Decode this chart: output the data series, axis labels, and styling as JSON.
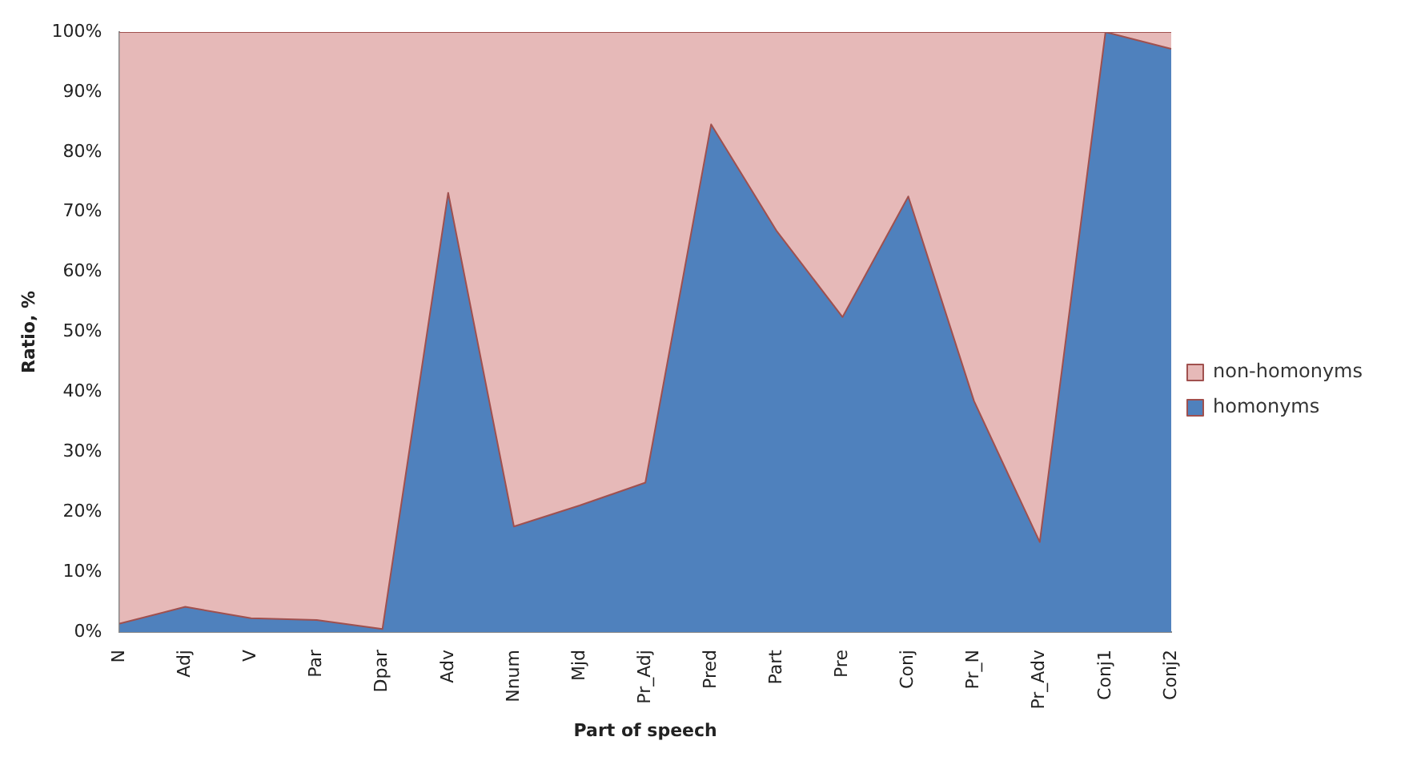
{
  "chart_data": {
    "type": "area",
    "stacked": true,
    "xlabel": "Part of speech",
    "ylabel": "Ratio, %",
    "categories": [
      "N",
      "Adj",
      "V",
      "Par",
      "Dpar",
      "Adv",
      "Nnum",
      "Mjd",
      "Pr_Adj",
      "Pred",
      "Part",
      "Pre",
      "Conj",
      "Pr_N",
      "Pr_Adv",
      "Conj1",
      "Conj2"
    ],
    "series": [
      {
        "name": "homonyms",
        "color": "#4f81bd",
        "values": [
          1.4,
          4.2,
          2.3,
          2.0,
          0.5,
          73.2,
          17.6,
          21.1,
          24.9,
          84.6,
          66.8,
          52.5,
          72.6,
          38.5,
          15.0,
          100,
          97.2
        ]
      },
      {
        "name": "non-homonyms",
        "color": "#e6b9b8",
        "values": [
          98.6,
          95.8,
          97.7,
          98.0,
          99.5,
          26.8,
          82.4,
          78.9,
          75.1,
          15.4,
          33.2,
          47.5,
          27.4,
          61.5,
          85.0,
          0,
          2.8
        ]
      }
    ],
    "ylim": [
      0,
      100
    ],
    "yticks": [
      {
        "value": 0,
        "label": "0%"
      },
      {
        "value": 10,
        "label": "10%"
      },
      {
        "value": 20,
        "label": "20%"
      },
      {
        "value": 30,
        "label": "30%"
      },
      {
        "value": 40,
        "label": "40%"
      },
      {
        "value": 50,
        "label": "50%"
      },
      {
        "value": 60,
        "label": "60%"
      },
      {
        "value": 70,
        "label": "70%"
      },
      {
        "value": 80,
        "label": "80%"
      },
      {
        "value": 90,
        "label": "90%"
      },
      {
        "value": 100,
        "label": "100%"
      }
    ],
    "legend": "right",
    "grid": false
  }
}
